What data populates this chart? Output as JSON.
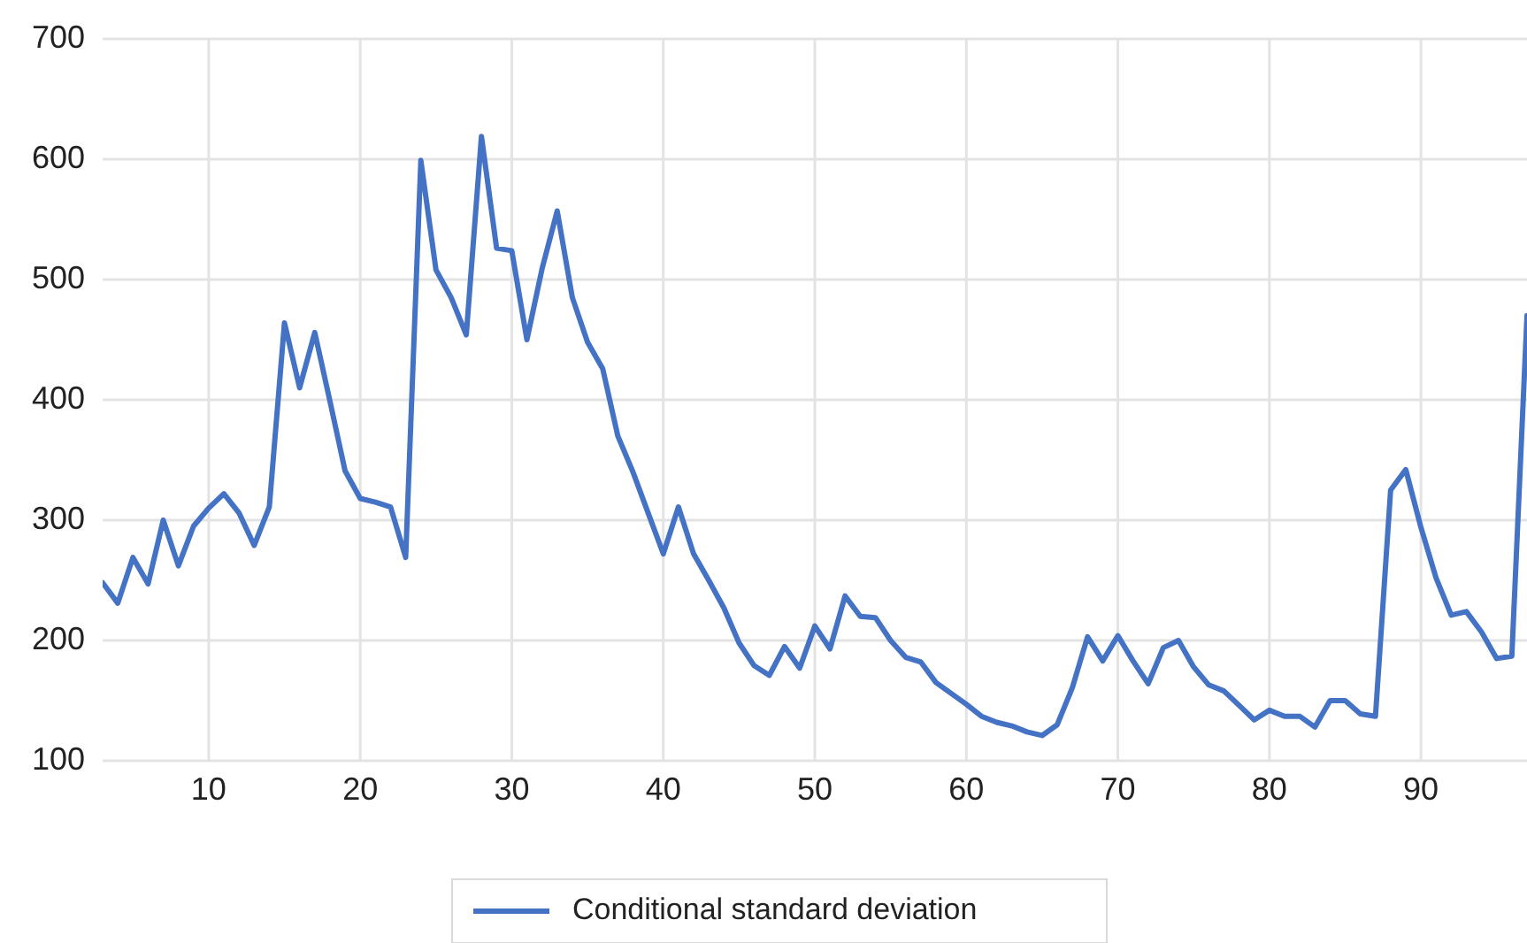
{
  "chart_data": {
    "type": "line",
    "x": [
      3,
      4,
      5,
      6,
      7,
      8,
      9,
      10,
      11,
      12,
      13,
      14,
      15,
      16,
      17,
      18,
      19,
      20,
      21,
      22,
      23,
      24,
      25,
      26,
      27,
      28,
      29,
      30,
      31,
      32,
      33,
      34,
      35,
      36,
      37,
      38,
      39,
      40,
      41,
      42,
      43,
      44,
      45,
      46,
      47,
      48,
      49,
      50,
      51,
      52,
      53,
      54,
      55,
      56,
      57,
      58,
      59,
      60,
      61,
      62,
      63,
      64,
      65,
      66,
      67,
      68,
      69,
      70,
      71,
      72,
      73,
      74,
      75,
      76,
      77,
      78,
      79,
      80,
      81,
      82,
      83,
      84,
      85,
      86,
      87,
      88,
      89,
      90,
      91,
      92,
      93,
      94,
      95,
      96,
      97
    ],
    "series": [
      {
        "name": "Conditional standard deviation",
        "color": "#4472c4",
        "values": [
          248,
          231,
          269,
          247,
          300,
          262,
          295,
          310,
          322,
          306,
          279,
          311,
          464,
          410,
          456,
          399,
          341,
          318,
          315,
          311,
          269,
          599,
          508,
          485,
          454,
          619,
          526,
          524,
          450,
          509,
          557,
          485,
          448,
          426,
          370,
          340,
          306,
          272,
          311,
          272,
          250,
          227,
          198,
          179,
          171,
          195,
          177,
          212,
          193,
          237,
          220,
          219,
          200,
          186,
          182,
          165,
          156,
          147,
          137,
          132,
          129,
          124,
          121,
          130,
          161,
          203,
          183,
          204,
          183,
          164,
          194,
          200,
          178,
          163,
          158,
          146,
          134,
          142,
          137,
          137,
          128,
          150,
          150,
          139,
          137,
          325,
          342,
          294,
          252,
          221,
          224,
          207,
          185,
          187,
          470
        ]
      }
    ],
    "xlim": [
      3,
      97
    ],
    "xticks": [
      10,
      20,
      30,
      40,
      50,
      60,
      70,
      80,
      90
    ],
    "ylim": [
      100,
      700
    ],
    "yticks": [
      100,
      200,
      300,
      400,
      500,
      600,
      700
    ],
    "grid": true,
    "legend": "bottom",
    "marker": "none",
    "line_style": "solid"
  }
}
